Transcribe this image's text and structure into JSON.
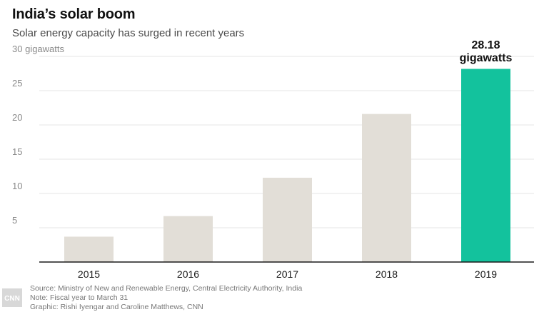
{
  "title": "India’s solar boom",
  "subtitle": "Solar energy capacity has surged in recent years",
  "footer": {
    "source": "Source: Ministry of New and Renewable Energy, Central Electricity Authority, India",
    "note": "Note: Fiscal year to March 31",
    "graphic": "Graphic: Rishi Iyengar and Caroline Matthews, CNN"
  },
  "logo_text": "CNN",
  "colors": {
    "bar": "#e2ded7",
    "highlight": "#13c29d",
    "grid": "#e6e6e6",
    "axis": "#1a1a1a",
    "tick_text": "#8a8a8a"
  },
  "chart_data": {
    "type": "bar",
    "title": "India’s solar boom",
    "subtitle": "Solar energy capacity has surged in recent years",
    "xlabel": "",
    "ylabel": "",
    "categories": [
      "2015",
      "2016",
      "2017",
      "2018",
      "2019"
    ],
    "values": [
      3.7,
      6.7,
      12.3,
      21.6,
      28.18
    ],
    "ylim": [
      0,
      30
    ],
    "yticks": [
      {
        "value": 5,
        "label": "5"
      },
      {
        "value": 10,
        "label": "10"
      },
      {
        "value": 15,
        "label": "15"
      },
      {
        "value": 20,
        "label": "20"
      },
      {
        "value": 25,
        "label": "25"
      },
      {
        "value": 30,
        "label": "30 gigawatts"
      }
    ],
    "highlight_index": 4,
    "annotation": {
      "value": "28.18",
      "unit": "gigawatts"
    },
    "grid": true
  }
}
